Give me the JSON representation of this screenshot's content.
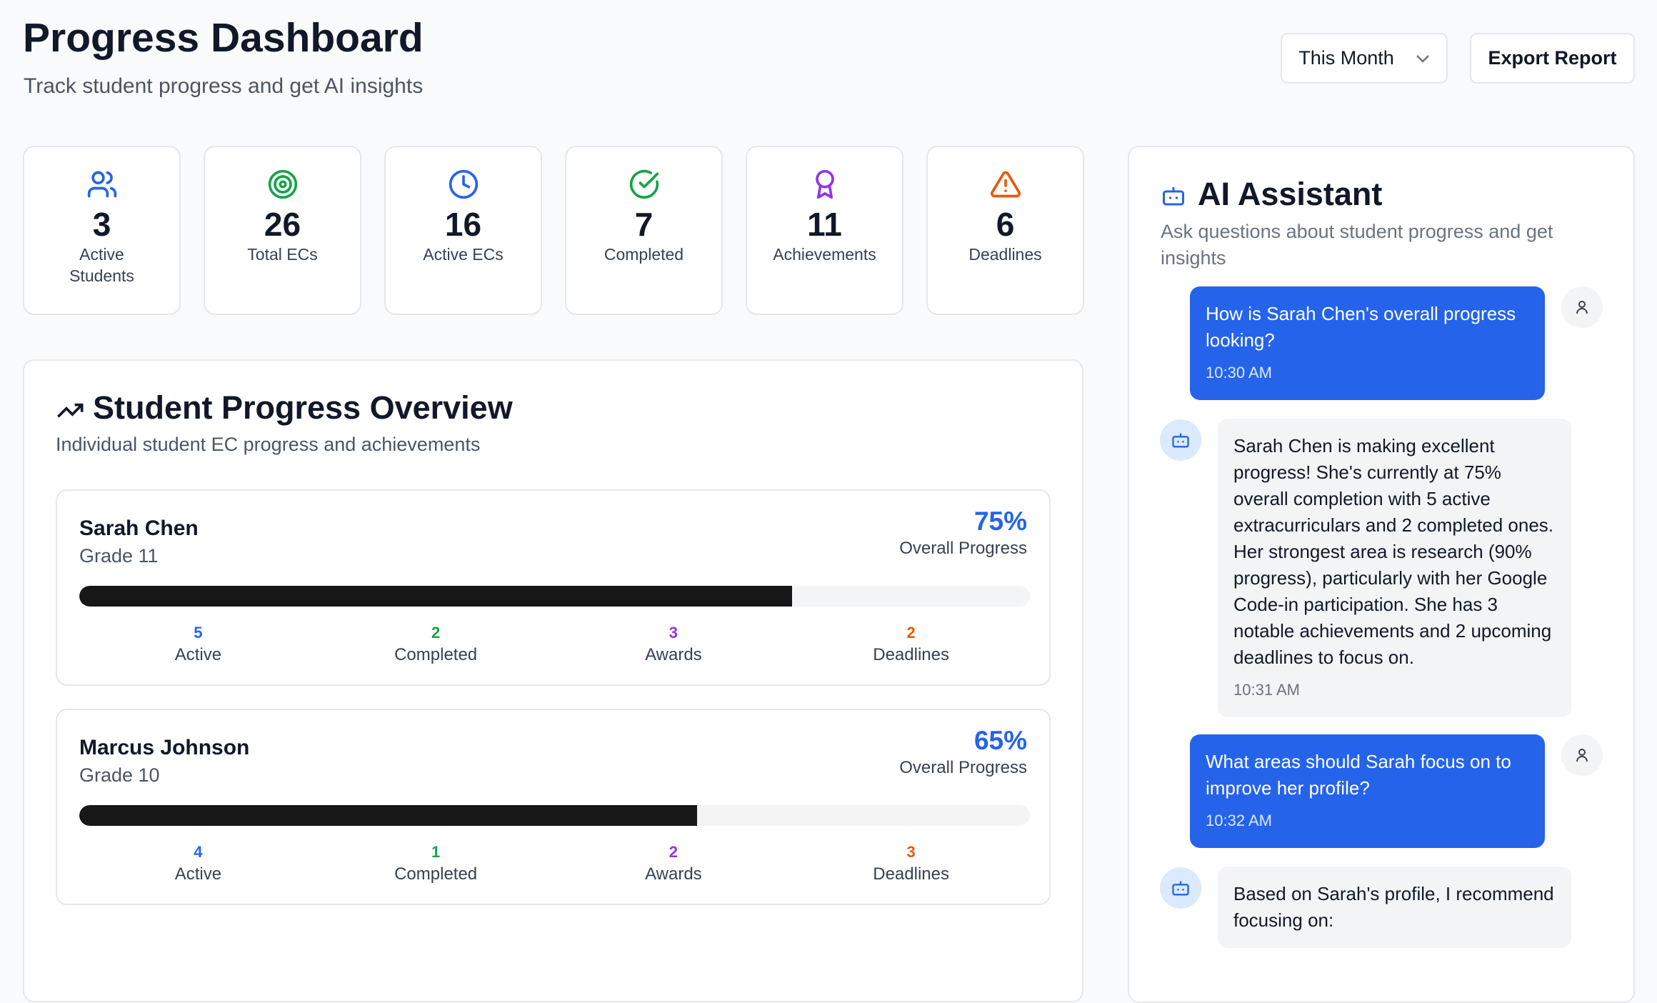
{
  "header": {
    "title": "Progress Dashboard",
    "subtitle": "Track student progress and get AI insights",
    "period": "This Month",
    "export": "Export Report"
  },
  "stats": [
    {
      "value": 3,
      "label": "Active Students"
    },
    {
      "value": 26,
      "label": "Total ECs"
    },
    {
      "value": 16,
      "label": "Active ECs"
    },
    {
      "value": 7,
      "label": "Completed"
    },
    {
      "value": 11,
      "label": "Achievements"
    },
    {
      "value": 6,
      "label": "Deadlines"
    }
  ],
  "overview": {
    "title": "Student Progress Overview",
    "subtitle": "Individual student EC progress and achievements",
    "students": [
      {
        "name": "Sarah Chen",
        "grade": "Grade 11",
        "progress": {
          "value": 75,
          "label": "75%"
        },
        "progress_caption": "Overall Progress",
        "metrics": [
          {
            "value": 5,
            "label": "Active"
          },
          {
            "value": 2,
            "label": "Completed"
          },
          {
            "value": 3,
            "label": "Awards"
          },
          {
            "value": 2,
            "label": "Deadlines"
          }
        ]
      },
      {
        "name": "Marcus Johnson",
        "grade": "Grade 10",
        "progress": {
          "value": 65,
          "label": "65%"
        },
        "progress_caption": "Overall Progress",
        "metrics": [
          {
            "value": 4,
            "label": "Active"
          },
          {
            "value": 1,
            "label": "Completed"
          },
          {
            "value": 2,
            "label": "Awards"
          },
          {
            "value": 3,
            "label": "Deadlines"
          }
        ]
      }
    ]
  },
  "assistant": {
    "title": "AI Assistant",
    "subtitle": "Ask questions about student progress and get insights",
    "messages": [
      {
        "text": "How is Sarah Chen's overall progress looking?",
        "time": "10:30 AM"
      },
      {
        "text": "Sarah Chen is making excellent progress! She's currently at 75% overall completion with 5 active extracurriculars and 2 completed ones. Her strongest area is research (90% progress), particularly with her Google Code-in participation. She has 3 notable achievements and 2 upcoming deadlines to focus on.",
        "time": "10:31 AM"
      },
      {
        "text": "What areas should Sarah focus on to improve her profile?",
        "time": "10:32 AM"
      },
      {
        "text": "Based on Sarah's profile, I recommend focusing on:"
      }
    ]
  }
}
